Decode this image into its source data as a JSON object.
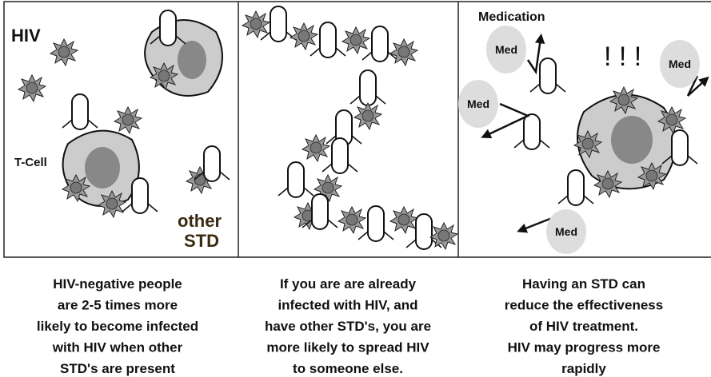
{
  "panels": [
    {
      "labels": {
        "virus": "HIV",
        "cell": "T-Cell",
        "other_1": "other",
        "other_2": "STD"
      }
    },
    {
      "labels": {}
    },
    {
      "labels": {
        "title": "Medication",
        "exclamation": "! ! !",
        "med": [
          "Med",
          "Med",
          "Med",
          "Med"
        ]
      }
    }
  ],
  "captions": [
    {
      "lines": [
        "HIV-negative people",
        "are 2-5 times more",
        "likely to become infected",
        "with HIV when other",
        "STD's are present"
      ]
    },
    {
      "lines": [
        "If you are are already",
        "infected with HIV, and",
        "have other STD's, you are",
        "more likely to spread HIV",
        "to someone else."
      ]
    },
    {
      "lines": [
        "Having an STD can",
        "reduce the effectiveness",
        "of HIV treatment.",
        "HIV may progress more",
        "rapidly"
      ]
    }
  ]
}
